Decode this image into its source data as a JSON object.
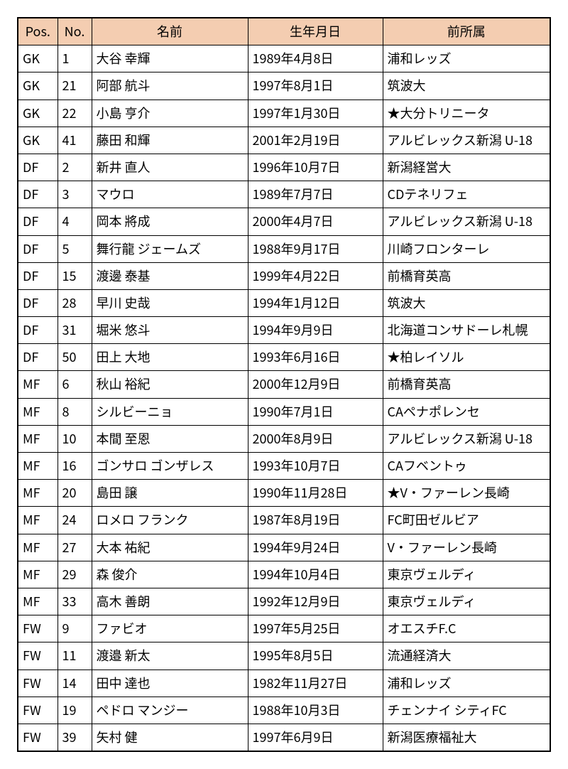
{
  "table": {
    "header_bg": "#f4cdb1",
    "border_color": "#000000",
    "font_size": 18,
    "columns": [
      {
        "key": "pos",
        "label": "Pos.",
        "class": "col-pos"
      },
      {
        "key": "no",
        "label": "No.",
        "class": "col-no"
      },
      {
        "key": "name",
        "label": "名前",
        "class": "col-name"
      },
      {
        "key": "dob",
        "label": "生年月日",
        "class": "col-dob"
      },
      {
        "key": "club",
        "label": "前所属",
        "class": "col-club"
      }
    ],
    "rows": [
      {
        "pos": "GK",
        "no": "1",
        "name": "大谷 幸輝",
        "dob": "1989年4月8日",
        "club": "浦和レッズ"
      },
      {
        "pos": "GK",
        "no": "21",
        "name": "阿部 航斗",
        "dob": "1997年8月1日",
        "club": "筑波大"
      },
      {
        "pos": "GK",
        "no": "22",
        "name": "小島 亨介",
        "dob": "1997年1月30日",
        "club": "★大分トリニータ"
      },
      {
        "pos": "GK",
        "no": "41",
        "name": "藤田 和輝",
        "dob": "2001年2月19日",
        "club": "アルビレックス新潟 U-18"
      },
      {
        "pos": "DF",
        "no": "2",
        "name": "新井 直人",
        "dob": "1996年10月7日",
        "club": "新潟経営大"
      },
      {
        "pos": "DF",
        "no": "3",
        "name": "マウロ",
        "dob": "1989年7月7日",
        "club": "CDテネリフェ"
      },
      {
        "pos": "DF",
        "no": "4",
        "name": "岡本 將成",
        "dob": "2000年4月7日",
        "club": "アルビレックス新潟 U-18"
      },
      {
        "pos": "DF",
        "no": "5",
        "name": "舞行龍 ジェームズ",
        "dob": "1988年9月17日",
        "club": "川崎フロンターレ"
      },
      {
        "pos": "DF",
        "no": "15",
        "name": "渡邊 泰基",
        "dob": "1999年4月22日",
        "club": "前橋育英高"
      },
      {
        "pos": "DF",
        "no": "28",
        "name": "早川 史哉",
        "dob": "1994年1月12日",
        "club": "筑波大"
      },
      {
        "pos": "DF",
        "no": "31",
        "name": "堀米 悠斗",
        "dob": "1994年9月9日",
        "club": "北海道コンサドーレ札幌"
      },
      {
        "pos": "DF",
        "no": "50",
        "name": "田上 大地",
        "dob": "1993年6月16日",
        "club": "★柏レイソル"
      },
      {
        "pos": "MF",
        "no": "6",
        "name": "秋山 裕紀",
        "dob": "2000年12月9日",
        "club": "前橋育英高"
      },
      {
        "pos": "MF",
        "no": "8",
        "name": "シルビーニョ",
        "dob": "1990年7月1日",
        "club": "CAペナポレンセ"
      },
      {
        "pos": "MF",
        "no": "10",
        "name": "本間 至恩",
        "dob": "2000年8月9日",
        "club": "アルビレックス新潟 U-18"
      },
      {
        "pos": "MF",
        "no": "16",
        "name": "ゴンサロ ゴンザレス",
        "dob": "1993年10月7日",
        "club": "CAフベントゥ"
      },
      {
        "pos": "MF",
        "no": "20",
        "name": "島田 譲",
        "dob": "1990年11月28日",
        "club": "★V・ファーレン長崎"
      },
      {
        "pos": "MF",
        "no": "24",
        "name": "ロメロ フランク",
        "dob": "1987年8月19日",
        "club": "FC町田ゼルビア"
      },
      {
        "pos": "MF",
        "no": "27",
        "name": "大本 祐紀",
        "dob": "1994年9月24日",
        "club": "V・ファーレン長崎"
      },
      {
        "pos": "MF",
        "no": "29",
        "name": "森 俊介",
        "dob": "1994年10月4日",
        "club": "東京ヴェルディ"
      },
      {
        "pos": "MF",
        "no": "33",
        "name": "高木 善朗",
        "dob": "1992年12月9日",
        "club": "東京ヴェルディ"
      },
      {
        "pos": "FW",
        "no": "9",
        "name": "ファビオ",
        "dob": "1997年5月25日",
        "club": "オエスチF.C"
      },
      {
        "pos": "FW",
        "no": "11",
        "name": "渡邉 新太",
        "dob": "1995年8月5日",
        "club": "流通経済大"
      },
      {
        "pos": "FW",
        "no": "14",
        "name": "田中 達也",
        "dob": "1982年11月27日",
        "club": "浦和レッズ"
      },
      {
        "pos": "FW",
        "no": "19",
        "name": "ペドロ マンジー",
        "dob": "1988年10月3日",
        "club": "チェンナイ シティFC"
      },
      {
        "pos": "FW",
        "no": "39",
        "name": "矢村 健",
        "dob": "1997年6月9日",
        "club": "新潟医療福祉大"
      }
    ]
  }
}
